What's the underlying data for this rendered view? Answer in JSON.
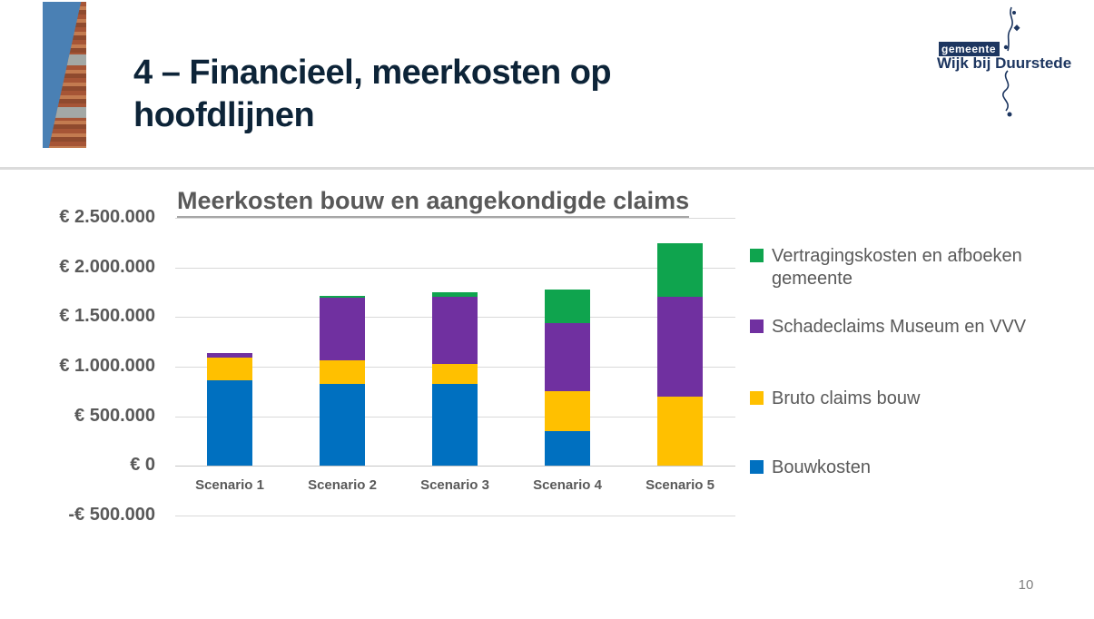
{
  "slide": {
    "title": "4 – Financieel, meerkosten op hoofdlijnen",
    "page_number": "10"
  },
  "logo": {
    "top_label": "gemeente",
    "name": "Wijk bij Duurstede",
    "color": "#1d3660"
  },
  "chart_data": {
    "type": "bar",
    "stacked": true,
    "title": "Meerkosten bouw en aangekondigde claims",
    "categories": [
      "Scenario 1",
      "Scenario 2",
      "Scenario 3",
      "Scenario 4",
      "Scenario 5"
    ],
    "series": [
      {
        "name": "Bouwkosten",
        "color": "#0070C0",
        "values": [
          860000,
          825000,
          825000,
          350000,
          0
        ]
      },
      {
        "name": "Bruto claims bouw",
        "color": "#FFC000",
        "values": [
          230000,
          240000,
          200000,
          400000,
          695000
        ]
      },
      {
        "name": "Schadeclaims Museum en VVV",
        "color": "#7030A0",
        "values": [
          50000,
          630000,
          680000,
          690000,
          1005000
        ]
      },
      {
        "name": "Vertragingskosten en afboeken gemeente",
        "color": "#0FA44E",
        "values": [
          0,
          20000,
          45000,
          340000,
          540000
        ]
      }
    ],
    "totals": [
      1140000,
      1715000,
      1750000,
      1780000,
      2240000
    ],
    "y_ticks": [
      {
        "label": "€ 2.500.000",
        "value": 2500000
      },
      {
        "label": "€ 2.000.000",
        "value": 2000000
      },
      {
        "label": "€ 1.500.000",
        "value": 1500000
      },
      {
        "label": "€ 1.000.000",
        "value": 1000000
      },
      {
        "label": "€ 500.000",
        "value": 500000
      },
      {
        "label": "€ 0",
        "value": 0
      },
      {
        "label": "-€ 500.000",
        "value": -500000
      }
    ],
    "ylim": [
      -500000,
      2500000
    ],
    "grid": true,
    "legend_position": "right",
    "currency": "EUR"
  }
}
